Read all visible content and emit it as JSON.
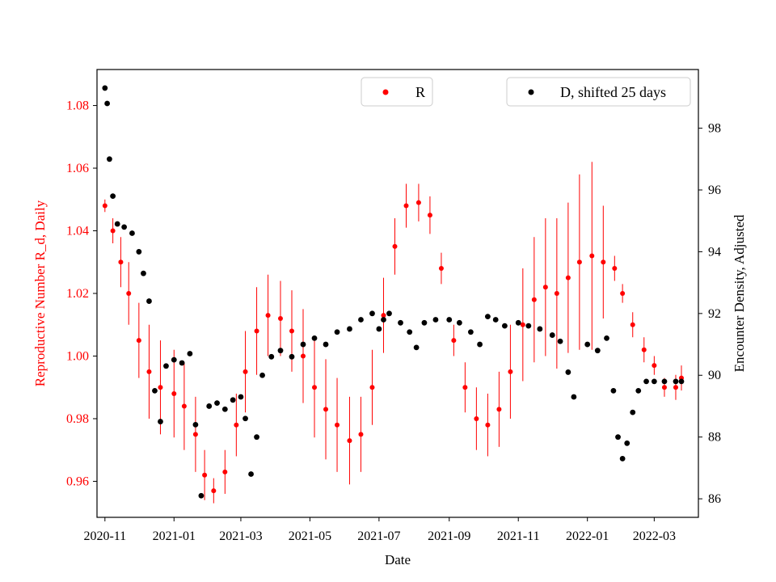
{
  "colors": {
    "r_series": "#ff0000",
    "d_series": "#000000",
    "frame": "#000000",
    "legend_border": "#cccccc"
  },
  "chart_data": {
    "type": "scatter",
    "xlabel": "Date",
    "ylabel_left": "Reproductive Number R_d, Daily",
    "ylabel_right": "Encounter Density, Adjusted",
    "x_range": [
      "2020-10-25",
      "2022-04-09"
    ],
    "ylim_left": [
      0.9485,
      1.0915
    ],
    "ylim_right": [
      85.4,
      99.9
    ],
    "x_ticks": [
      "2020-11",
      "2021-01",
      "2021-03",
      "2021-05",
      "2021-07",
      "2021-09",
      "2021-11",
      "2022-01",
      "2022-03"
    ],
    "x_tick_dates": [
      "2020-11-01",
      "2021-01-01",
      "2021-03-01",
      "2021-05-01",
      "2021-07-01",
      "2021-09-01",
      "2021-11-01",
      "2022-01-01",
      "2022-03-01"
    ],
    "y_ticks_left": [
      "0.96",
      "0.98",
      "1.00",
      "1.02",
      "1.04",
      "1.06",
      "1.08"
    ],
    "y_tick_values_left": [
      0.96,
      0.98,
      1.0,
      1.02,
      1.04,
      1.06,
      1.08
    ],
    "y_ticks_right": [
      "86",
      "88",
      "90",
      "92",
      "94",
      "96",
      "98"
    ],
    "y_tick_values_right": [
      86,
      88,
      90,
      92,
      94,
      96,
      98
    ],
    "legend_left": {
      "label": "R",
      "position": "top-center"
    },
    "legend_right": {
      "label": "D, shifted 25 days",
      "position": "top-right"
    },
    "series": [
      {
        "name": "R",
        "axis": "left",
        "marker": "dot-with-errorbar",
        "points": [
          [
            "2020-11-01",
            1.048,
            0.002
          ],
          [
            "2020-11-08",
            1.04,
            0.004
          ],
          [
            "2020-11-15",
            1.03,
            0.008
          ],
          [
            "2020-11-22",
            1.02,
            0.01
          ],
          [
            "2020-12-01",
            1.005,
            0.012
          ],
          [
            "2020-12-10",
            0.995,
            0.015
          ],
          [
            "2020-12-20",
            0.99,
            0.015
          ],
          [
            "2021-01-01",
            0.988,
            0.014
          ],
          [
            "2021-01-10",
            0.984,
            0.014
          ],
          [
            "2021-01-20",
            0.975,
            0.012
          ],
          [
            "2021-01-28",
            0.962,
            0.008
          ],
          [
            "2021-02-05",
            0.957,
            0.004
          ],
          [
            "2021-02-15",
            0.963,
            0.007
          ],
          [
            "2021-02-25",
            0.978,
            0.01
          ],
          [
            "2021-03-05",
            0.995,
            0.013
          ],
          [
            "2021-03-15",
            1.008,
            0.014
          ],
          [
            "2021-03-25",
            1.013,
            0.013
          ],
          [
            "2021-04-05",
            1.012,
            0.012
          ],
          [
            "2021-04-15",
            1.008,
            0.013
          ],
          [
            "2021-04-25",
            1.0,
            0.015
          ],
          [
            "2021-05-05",
            0.99,
            0.016
          ],
          [
            "2021-05-15",
            0.983,
            0.016
          ],
          [
            "2021-05-25",
            0.978,
            0.015
          ],
          [
            "2021-06-05",
            0.973,
            0.014
          ],
          [
            "2021-06-15",
            0.975,
            0.012
          ],
          [
            "2021-06-25",
            0.99,
            0.012
          ],
          [
            "2021-07-05",
            1.013,
            0.012
          ],
          [
            "2021-07-15",
            1.035,
            0.009
          ],
          [
            "2021-07-25",
            1.048,
            0.007
          ],
          [
            "2021-08-05",
            1.049,
            0.006
          ],
          [
            "2021-08-15",
            1.045,
            0.006
          ],
          [
            "2021-08-25",
            1.028,
            0.005
          ],
          [
            "2021-09-05",
            1.005,
            0.005
          ],
          [
            "2021-09-15",
            0.99,
            0.008
          ],
          [
            "2021-09-25",
            0.98,
            0.01
          ],
          [
            "2021-10-05",
            0.978,
            0.01
          ],
          [
            "2021-10-15",
            0.983,
            0.012
          ],
          [
            "2021-10-25",
            0.995,
            0.015
          ],
          [
            "2021-11-05",
            1.01,
            0.018
          ],
          [
            "2021-11-15",
            1.018,
            0.02
          ],
          [
            "2021-11-25",
            1.022,
            0.022
          ],
          [
            "2021-12-05",
            1.02,
            0.024
          ],
          [
            "2021-12-15",
            1.025,
            0.024
          ],
          [
            "2021-12-25",
            1.03,
            0.028
          ],
          [
            "2022-01-05",
            1.032,
            0.03
          ],
          [
            "2022-01-15",
            1.03,
            0.018
          ],
          [
            "2022-01-25",
            1.028,
            0.004
          ],
          [
            "2022-02-01",
            1.02,
            0.003
          ],
          [
            "2022-02-10",
            1.01,
            0.004
          ],
          [
            "2022-02-20",
            1.002,
            0.004
          ],
          [
            "2022-03-01",
            0.997,
            0.003
          ],
          [
            "2022-03-10",
            0.99,
            0.003
          ],
          [
            "2022-03-20",
            0.99,
            0.004
          ],
          [
            "2022-03-25",
            0.993,
            0.004
          ]
        ]
      },
      {
        "name": "D, shifted 25 days",
        "axis": "right",
        "marker": "dot",
        "points": [
          [
            "2020-11-01",
            99.3
          ],
          [
            "2020-11-03",
            98.8
          ],
          [
            "2020-11-05",
            97.0
          ],
          [
            "2020-11-08",
            95.8
          ],
          [
            "2020-11-12",
            94.9
          ],
          [
            "2020-11-18",
            94.8
          ],
          [
            "2020-11-25",
            94.6
          ],
          [
            "2020-12-01",
            94.0
          ],
          [
            "2020-12-05",
            93.3
          ],
          [
            "2020-12-10",
            92.4
          ],
          [
            "2020-12-15",
            89.5
          ],
          [
            "2020-12-20",
            88.5
          ],
          [
            "2020-12-25",
            90.3
          ],
          [
            "2021-01-01",
            90.5
          ],
          [
            "2021-01-08",
            90.4
          ],
          [
            "2021-01-15",
            90.7
          ],
          [
            "2021-01-20",
            88.4
          ],
          [
            "2021-01-25",
            86.1
          ],
          [
            "2021-02-01",
            89.0
          ],
          [
            "2021-02-08",
            89.1
          ],
          [
            "2021-02-15",
            88.9
          ],
          [
            "2021-02-22",
            89.2
          ],
          [
            "2021-03-01",
            89.3
          ],
          [
            "2021-03-05",
            88.6
          ],
          [
            "2021-03-10",
            86.8
          ],
          [
            "2021-03-15",
            88.0
          ],
          [
            "2021-03-20",
            90.0
          ],
          [
            "2021-03-28",
            90.6
          ],
          [
            "2021-04-05",
            90.8
          ],
          [
            "2021-04-15",
            90.6
          ],
          [
            "2021-04-25",
            91.0
          ],
          [
            "2021-05-05",
            91.2
          ],
          [
            "2021-05-15",
            91.0
          ],
          [
            "2021-05-25",
            91.4
          ],
          [
            "2021-06-05",
            91.5
          ],
          [
            "2021-06-15",
            91.8
          ],
          [
            "2021-06-25",
            92.0
          ],
          [
            "2021-07-01",
            91.5
          ],
          [
            "2021-07-05",
            91.8
          ],
          [
            "2021-07-10",
            92.0
          ],
          [
            "2021-07-20",
            91.7
          ],
          [
            "2021-07-28",
            91.4
          ],
          [
            "2021-08-03",
            90.9
          ],
          [
            "2021-08-10",
            91.7
          ],
          [
            "2021-08-20",
            91.8
          ],
          [
            "2021-09-01",
            91.8
          ],
          [
            "2021-09-10",
            91.7
          ],
          [
            "2021-09-20",
            91.4
          ],
          [
            "2021-09-28",
            91.0
          ],
          [
            "2021-10-05",
            91.9
          ],
          [
            "2021-10-12",
            91.8
          ],
          [
            "2021-10-20",
            91.6
          ],
          [
            "2021-11-01",
            91.7
          ],
          [
            "2021-11-10",
            91.6
          ],
          [
            "2021-11-20",
            91.5
          ],
          [
            "2021-12-01",
            91.3
          ],
          [
            "2021-12-08",
            91.1
          ],
          [
            "2021-12-15",
            90.1
          ],
          [
            "2021-12-20",
            89.3
          ],
          [
            "2022-01-01",
            91.0
          ],
          [
            "2022-01-10",
            90.8
          ],
          [
            "2022-01-18",
            91.2
          ],
          [
            "2022-01-24",
            89.5
          ],
          [
            "2022-01-28",
            88.0
          ],
          [
            "2022-02-01",
            87.3
          ],
          [
            "2022-02-05",
            87.8
          ],
          [
            "2022-02-10",
            88.8
          ],
          [
            "2022-02-15",
            89.5
          ],
          [
            "2022-02-22",
            89.8
          ],
          [
            "2022-03-01",
            89.8
          ],
          [
            "2022-03-10",
            89.8
          ],
          [
            "2022-03-20",
            89.8
          ],
          [
            "2022-03-25",
            89.8
          ]
        ]
      }
    ]
  }
}
